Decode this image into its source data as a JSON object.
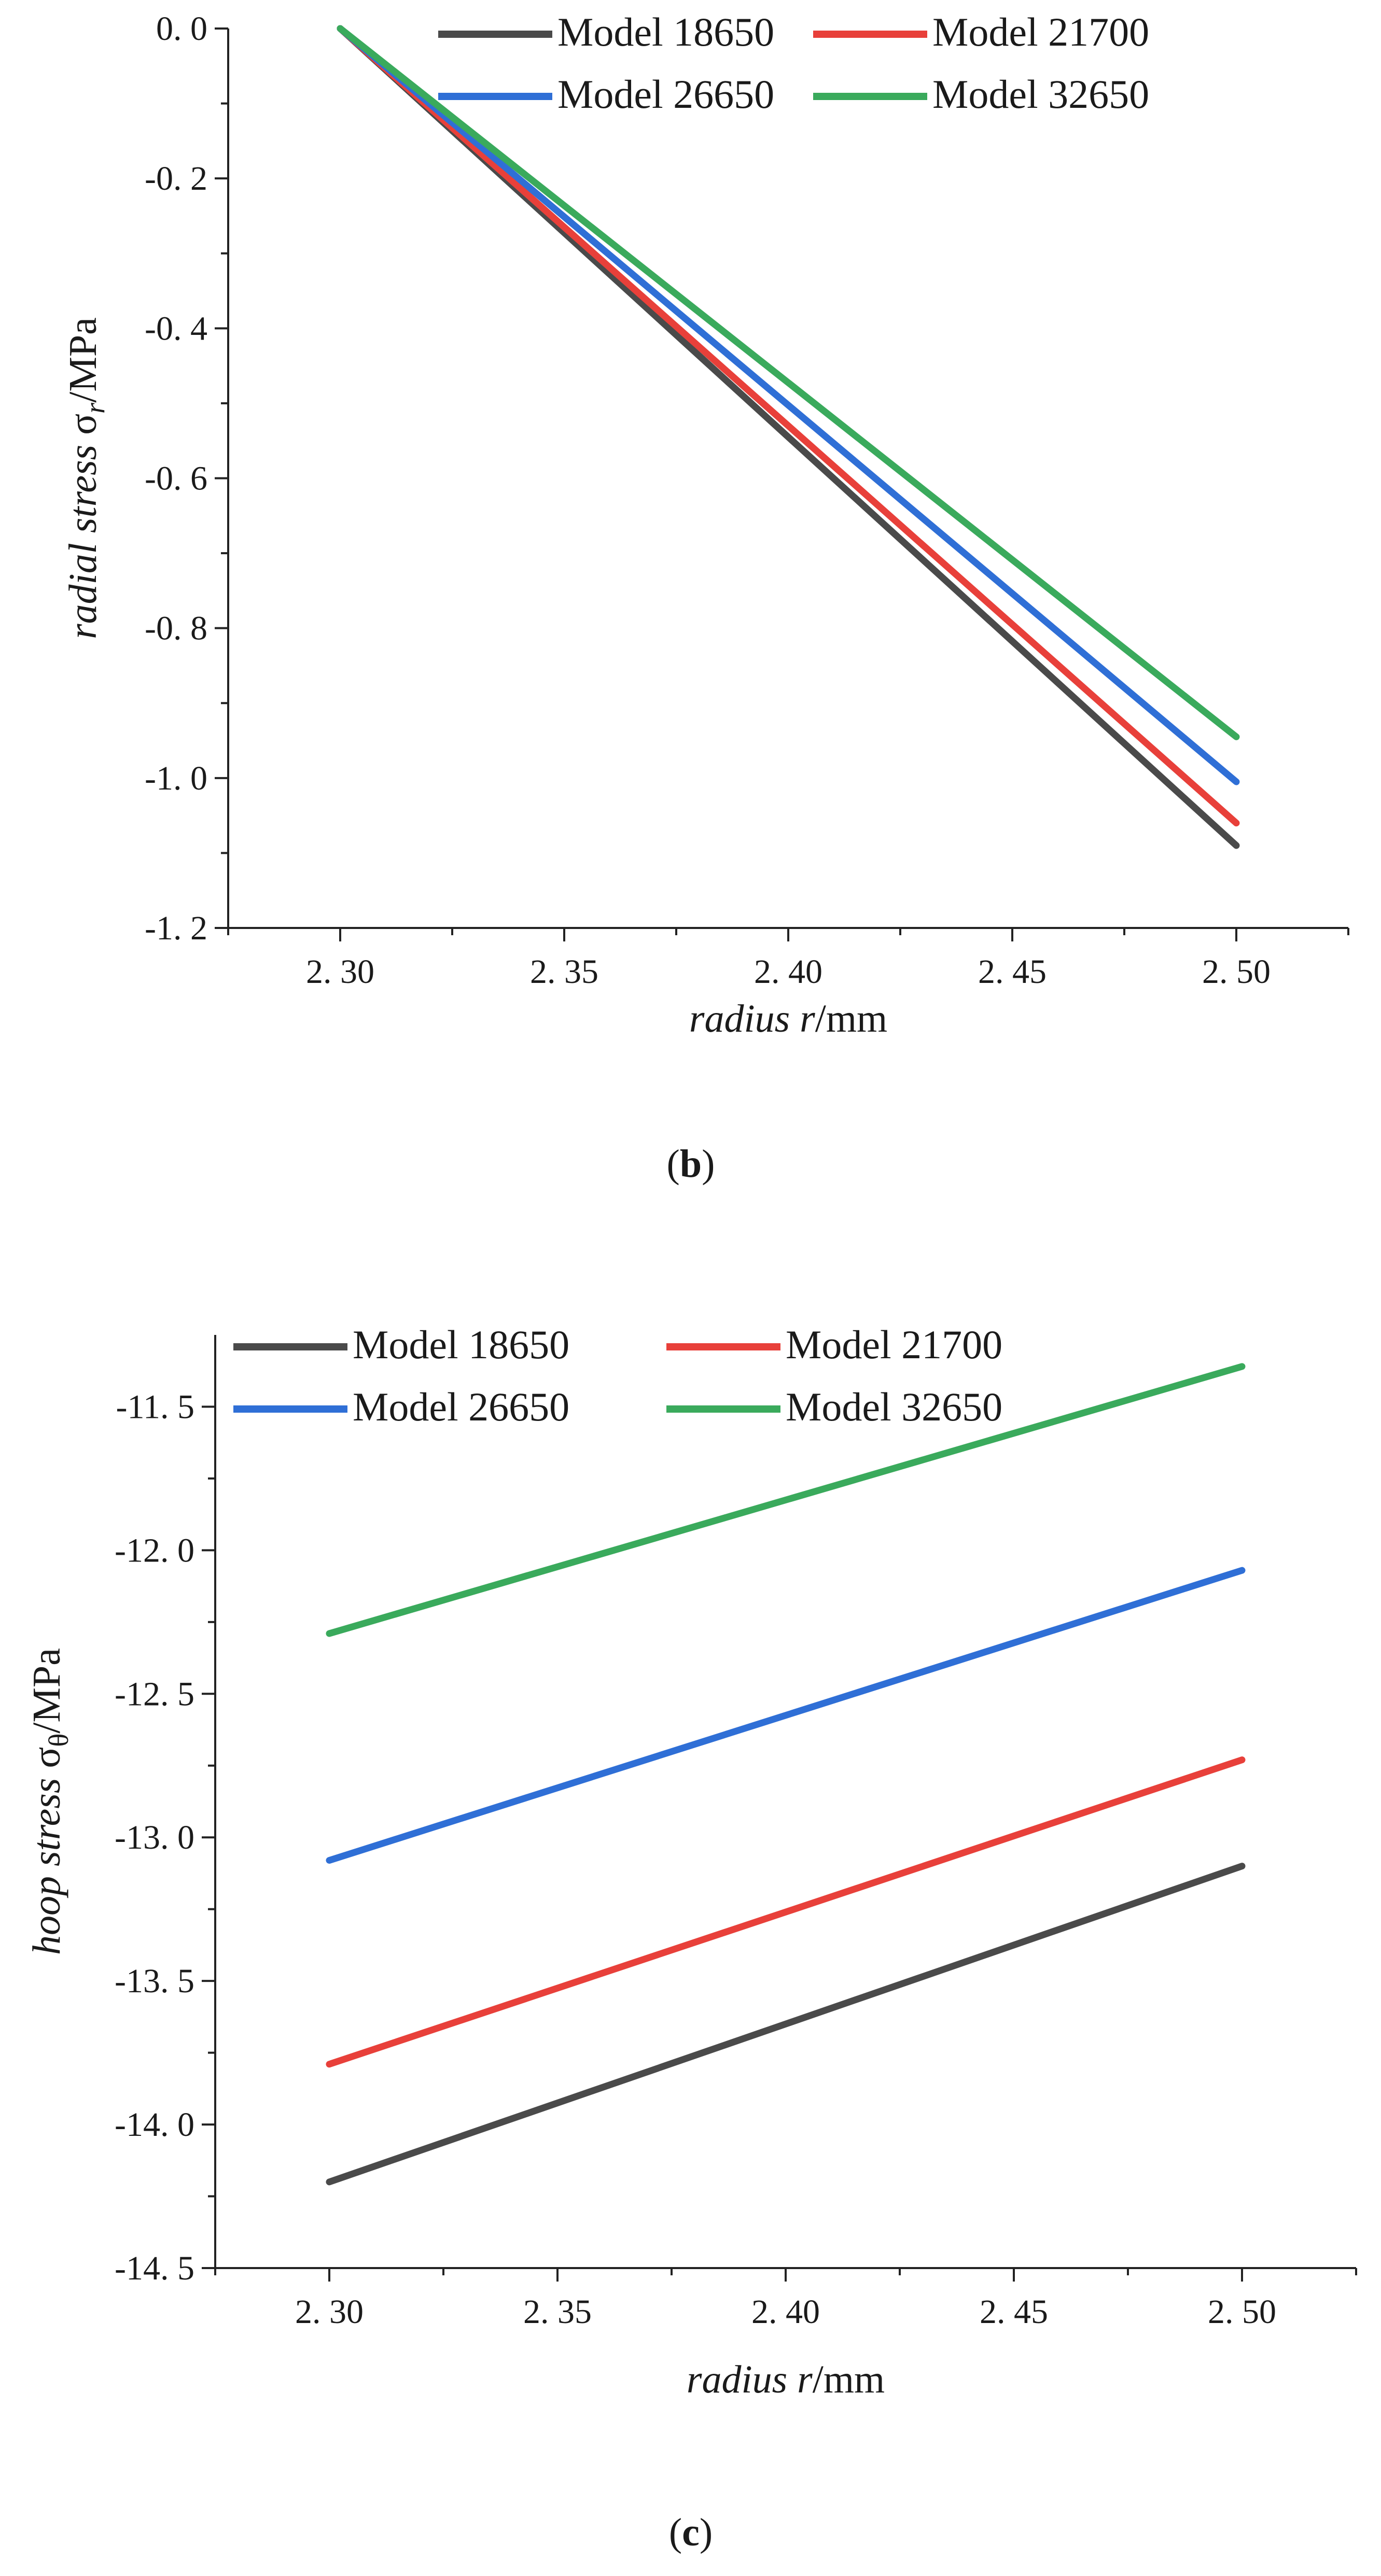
{
  "chart_data": [
    {
      "type": "line",
      "panel": "b",
      "caption": {
        "open": "(",
        "letter": "b",
        "close": ")"
      },
      "xlabel": {
        "italic": "radius  r",
        "plain": "/mm"
      },
      "ylabel": {
        "italic": "radial stress ",
        "sigma": "σ",
        "sub": "r",
        "plain": "/MPa"
      },
      "xlim": [
        2.275,
        2.525
      ],
      "ylim": [
        -1.2,
        0.0
      ],
      "xticks": [
        2.3,
        2.35,
        2.4,
        2.45,
        2.5
      ],
      "xtick_labels": [
        "2. 30",
        "2. 35",
        "2. 40",
        "2. 45",
        "2. 50"
      ],
      "yticks": [
        0.0,
        -0.2,
        -0.4,
        -0.6,
        -0.8,
        -1.0,
        -1.2
      ],
      "ytick_labels": [
        "0. 0",
        "-0. 2",
        "-0. 4",
        "-0. 6",
        "-0. 8",
        "-1. 0",
        "-1. 2"
      ],
      "legend_position": "top",
      "series": [
        {
          "name": "Model 18650",
          "color": "#4a4a4a",
          "x": [
            2.3,
            2.5
          ],
          "y": [
            0.0,
            -1.09
          ]
        },
        {
          "name": "Model 21700",
          "color": "#e8403a",
          "x": [
            2.3,
            2.5
          ],
          "y": [
            0.0,
            -1.06
          ]
        },
        {
          "name": "Model 26650",
          "color": "#2f6fd6",
          "x": [
            2.3,
            2.5
          ],
          "y": [
            0.0,
            -1.005
          ]
        },
        {
          "name": "Model 32650",
          "color": "#3aaa5c",
          "x": [
            2.3,
            2.5
          ],
          "y": [
            0.0,
            -0.945
          ]
        }
      ]
    },
    {
      "type": "line",
      "panel": "c",
      "caption": {
        "open": "(",
        "letter": "c",
        "close": ")"
      },
      "xlabel": {
        "italic": "radius  r",
        "plain": "/mm"
      },
      "ylabel": {
        "italic": "hoop stress ",
        "sigma": "σ",
        "sub": "θ",
        "plain": "/MPa"
      },
      "xlim": [
        2.275,
        2.525
      ],
      "ylim": [
        -14.5,
        -11.25
      ],
      "xticks": [
        2.3,
        2.35,
        2.4,
        2.45,
        2.5
      ],
      "xtick_labels": [
        "2. 30",
        "2. 35",
        "2. 40",
        "2. 45",
        "2. 50"
      ],
      "yticks": [
        -11.5,
        -12.0,
        -12.5,
        -13.0,
        -13.5,
        -14.0,
        -14.5
      ],
      "ytick_labels": [
        "-11. 5",
        "-12. 0",
        "-12. 5",
        "-13. 0",
        "-13. 5",
        "-14. 0",
        "-14. 5"
      ],
      "legend_position": "top",
      "series": [
        {
          "name": "Model 18650",
          "color": "#4a4a4a",
          "x": [
            2.3,
            2.5
          ],
          "y": [
            -14.2,
            -13.1
          ]
        },
        {
          "name": "Model 21700",
          "color": "#e8403a",
          "x": [
            2.3,
            2.5
          ],
          "y": [
            -13.79,
            -12.73
          ]
        },
        {
          "name": "Model 26650",
          "color": "#2f6fd6",
          "x": [
            2.3,
            2.5
          ],
          "y": [
            -13.08,
            -12.07
          ]
        },
        {
          "name": "Model 32650",
          "color": "#3aaa5c",
          "x": [
            2.3,
            2.5
          ],
          "y": [
            -12.29,
            -11.36
          ]
        }
      ]
    }
  ]
}
